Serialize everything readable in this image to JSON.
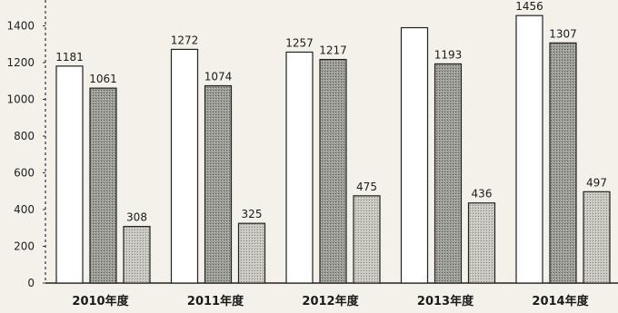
{
  "chart_data": {
    "type": "bar",
    "title": "",
    "xlabel": "",
    "ylabel": "",
    "categories": [
      "2010年度",
      "2011年度",
      "2012年度",
      "2013年度",
      "2014年度"
    ],
    "yticks": [
      "0",
      "200",
      "400",
      "600",
      "800",
      "1000",
      "1200",
      "1400"
    ],
    "ylim": [
      0,
      1500
    ],
    "grid": false,
    "legend": "none",
    "series": [
      {
        "values": [
          1181,
          1272,
          1257,
          1390,
          1456
        ],
        "labels": [
          "1181",
          "1272",
          "1257",
          "",
          "1456"
        ],
        "color": "#ffffff"
      },
      {
        "values": [
          1061,
          1074,
          1217,
          1193,
          1307
        ],
        "labels": [
          "1061",
          "1074",
          "1217",
          "1193",
          "1307"
        ],
        "color": "#9a9a94"
      },
      {
        "values": [
          308,
          325,
          475,
          436,
          497
        ],
        "labels": [
          "308",
          "325",
          "475",
          "436",
          "497"
        ],
        "color": "#bdbdb6"
      }
    ]
  }
}
